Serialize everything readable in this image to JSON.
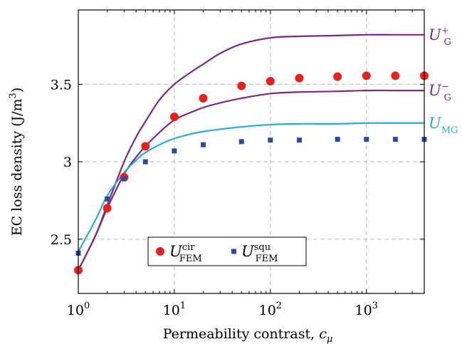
{
  "chart_data": {
    "type": "line",
    "xlabel_main": "Permeability contrast, ",
    "xlabel_var": "c",
    "xlabel_sub": "μ",
    "ylabel_main": "EC loss density (J/m",
    "ylabel_sup": "3",
    "ylabel_end": ")",
    "x_scale": "log",
    "xlim": [
      1,
      4000
    ],
    "ylim": [
      2.15,
      3.98
    ],
    "grid": true,
    "legend_placement": "bottom-left",
    "x_ticks": [
      {
        "value": 1,
        "base": "10",
        "exp": "0"
      },
      {
        "value": 10,
        "base": "10",
        "exp": "1"
      },
      {
        "value": 100,
        "base": "10",
        "exp": "2"
      },
      {
        "value": 1000,
        "base": "10",
        "exp": "3"
      }
    ],
    "y_ticks": [
      {
        "value": 2.5,
        "label": "2.5"
      },
      {
        "value": 3,
        "label": "3"
      },
      {
        "value": 3.5,
        "label": "3.5"
      }
    ],
    "curves": [
      {
        "label_main": "U",
        "label_sup": "+",
        "label_sub": "G",
        "color": "#7b2a7f",
        "x": [
          1,
          1.5,
          2,
          3,
          4,
          5,
          7,
          10,
          15,
          20,
          30,
          50,
          100,
          200,
          500,
          1000,
          2000,
          4000
        ],
        "y": [
          2.3,
          2.52,
          2.72,
          3.0,
          3.16,
          3.26,
          3.4,
          3.5,
          3.58,
          3.63,
          3.7,
          3.76,
          3.8,
          3.81,
          3.815,
          3.82,
          3.82,
          3.82
        ]
      },
      {
        "label_main": "U",
        "label_sup": "−",
        "label_sub": "G",
        "color": "#7b2a7f",
        "x": [
          1,
          1.5,
          2,
          3,
          4,
          5,
          7,
          10,
          15,
          20,
          30,
          50,
          100,
          200,
          500,
          1000,
          2000,
          4000
        ],
        "y": [
          2.3,
          2.52,
          2.7,
          2.92,
          3.03,
          3.1,
          3.19,
          3.27,
          3.32,
          3.35,
          3.38,
          3.41,
          3.44,
          3.45,
          3.455,
          3.46,
          3.46,
          3.46
        ]
      },
      {
        "label_main": "U",
        "label_sup": "",
        "label_sub": "MG",
        "color": "#29a9e0",
        "x": [
          1,
          1.5,
          2,
          3,
          4,
          5,
          7,
          10,
          15,
          20,
          30,
          50,
          100,
          200,
          500,
          1000,
          2000,
          4000
        ],
        "y": [
          2.42,
          2.62,
          2.78,
          2.93,
          3.01,
          3.06,
          3.11,
          3.15,
          3.18,
          3.195,
          3.21,
          3.225,
          3.24,
          3.245,
          3.245,
          3.25,
          3.25,
          3.25
        ]
      }
    ],
    "markers": [
      {
        "label_main": "U",
        "label_sup": "cir",
        "label_sub": "FEM",
        "shape": "circle",
        "color": "#e8211d",
        "x": [
          1,
          2,
          3,
          5,
          10,
          20,
          50,
          100,
          200,
          500,
          1000,
          2000,
          4000
        ],
        "y": [
          2.3,
          2.7,
          2.9,
          3.1,
          3.29,
          3.41,
          3.49,
          3.52,
          3.54,
          3.55,
          3.555,
          3.555,
          3.555
        ]
      },
      {
        "label_main": "U",
        "label_sup": "squ",
        "label_sub": "FEM",
        "shape": "square",
        "color": "#2c4a9e",
        "x": [
          1,
          2,
          3,
          5,
          10,
          20,
          50,
          100,
          200,
          500,
          1000,
          2000,
          4000
        ],
        "y": [
          2.41,
          2.76,
          2.89,
          3.0,
          3.07,
          3.11,
          3.13,
          3.14,
          3.14,
          3.145,
          3.145,
          3.145,
          3.145
        ]
      }
    ]
  }
}
